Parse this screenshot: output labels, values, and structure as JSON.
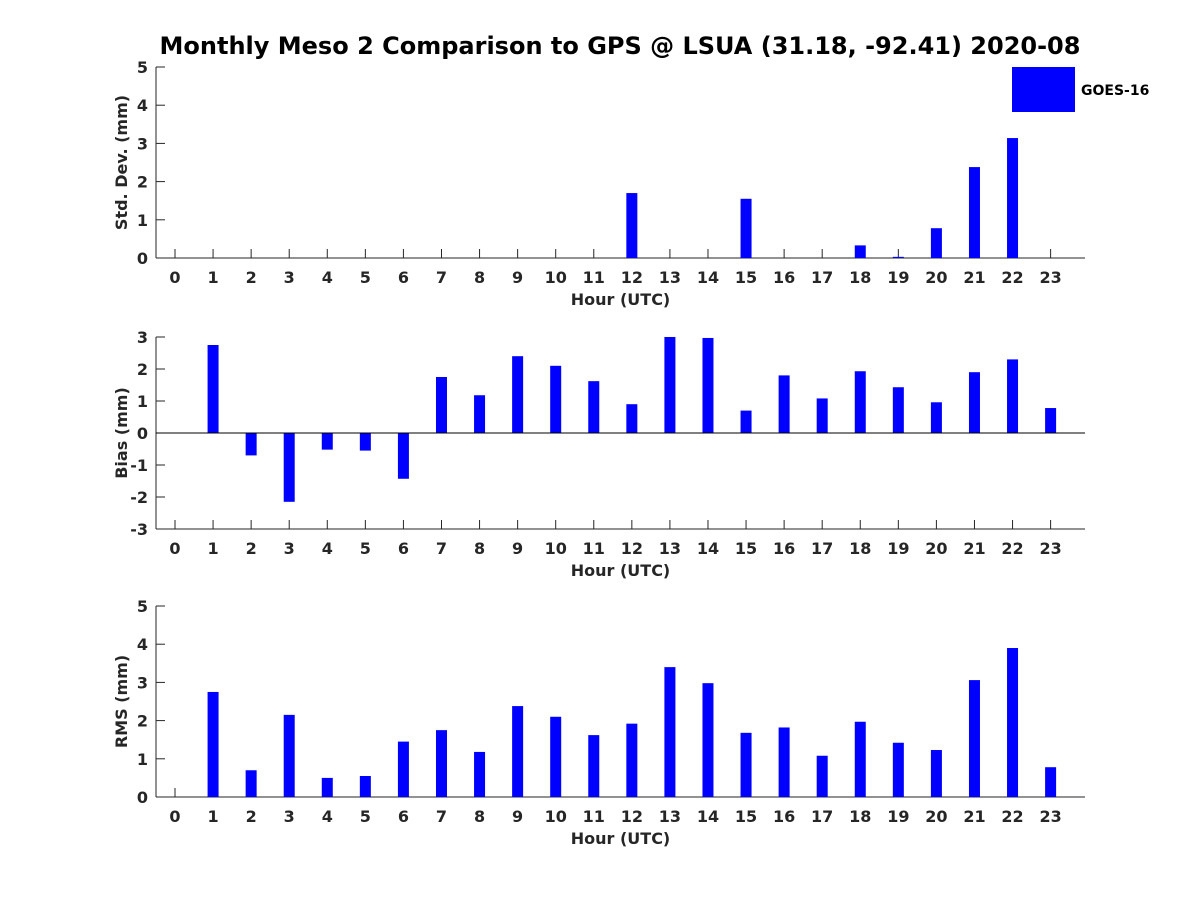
{
  "figure": {
    "title": "Monthly Meso 2 Comparison to GPS @ LSUA (31.18, -92.41) 2020-08"
  },
  "legend": {
    "label": "GOES-16",
    "color": "#0000ff",
    "placement": "top-right"
  },
  "chart_data": [
    {
      "type": "bar",
      "name": "std-dev-panel",
      "categories": [
        "0",
        "1",
        "2",
        "3",
        "4",
        "5",
        "6",
        "7",
        "8",
        "9",
        "10",
        "11",
        "12",
        "13",
        "14",
        "15",
        "16",
        "17",
        "18",
        "19",
        "20",
        "21",
        "22",
        "23"
      ],
      "series": [
        {
          "name": "GOES-16",
          "values": [
            0,
            0,
            0,
            0,
            0,
            0,
            0,
            0,
            0,
            0,
            0,
            0,
            1.7,
            0,
            0,
            1.55,
            0,
            0,
            0.33,
            0.03,
            0.78,
            2.38,
            3.14,
            0
          ]
        }
      ],
      "xlabel": "Hour (UTC)",
      "ylabel": "Std. Dev. (mm)",
      "ylim": [
        0,
        5
      ],
      "yticks": [
        "0",
        "1",
        "2",
        "3",
        "4",
        "5"
      ],
      "zero_line": false,
      "grid": false
    },
    {
      "type": "bar",
      "name": "bias-panel",
      "categories": [
        "0",
        "1",
        "2",
        "3",
        "4",
        "5",
        "6",
        "7",
        "8",
        "9",
        "10",
        "11",
        "12",
        "13",
        "14",
        "15",
        "16",
        "17",
        "18",
        "19",
        "20",
        "21",
        "22",
        "23"
      ],
      "series": [
        {
          "name": "GOES-16",
          "values": [
            0,
            2.75,
            -0.7,
            -2.15,
            -0.52,
            -0.55,
            -1.43,
            1.75,
            1.18,
            2.4,
            2.1,
            1.62,
            0.9,
            3.0,
            2.97,
            0.7,
            1.8,
            1.08,
            1.93,
            1.43,
            0.96,
            1.9,
            2.3,
            0.78
          ]
        }
      ],
      "xlabel": "Hour (UTC)",
      "ylabel": "Bias (mm)",
      "ylim": [
        -3,
        3
      ],
      "yticks": [
        "-3",
        "-2",
        "-1",
        "0",
        "1",
        "2",
        "3"
      ],
      "zero_line": true,
      "grid": false
    },
    {
      "type": "bar",
      "name": "rms-panel",
      "categories": [
        "0",
        "1",
        "2",
        "3",
        "4",
        "5",
        "6",
        "7",
        "8",
        "9",
        "10",
        "11",
        "12",
        "13",
        "14",
        "15",
        "16",
        "17",
        "18",
        "19",
        "20",
        "21",
        "22",
        "23"
      ],
      "series": [
        {
          "name": "GOES-16",
          "values": [
            0,
            2.75,
            0.7,
            2.15,
            0.5,
            0.55,
            1.45,
            1.75,
            1.18,
            2.38,
            2.1,
            1.62,
            1.92,
            3.4,
            2.98,
            1.68,
            1.82,
            1.08,
            1.97,
            1.42,
            1.23,
            3.06,
            3.9,
            0.78
          ]
        }
      ],
      "xlabel": "Hour (UTC)",
      "ylabel": "RMS (mm)",
      "ylim": [
        0,
        5
      ],
      "yticks": [
        "0",
        "1",
        "2",
        "3",
        "4",
        "5"
      ],
      "zero_line": false,
      "grid": false
    }
  ]
}
